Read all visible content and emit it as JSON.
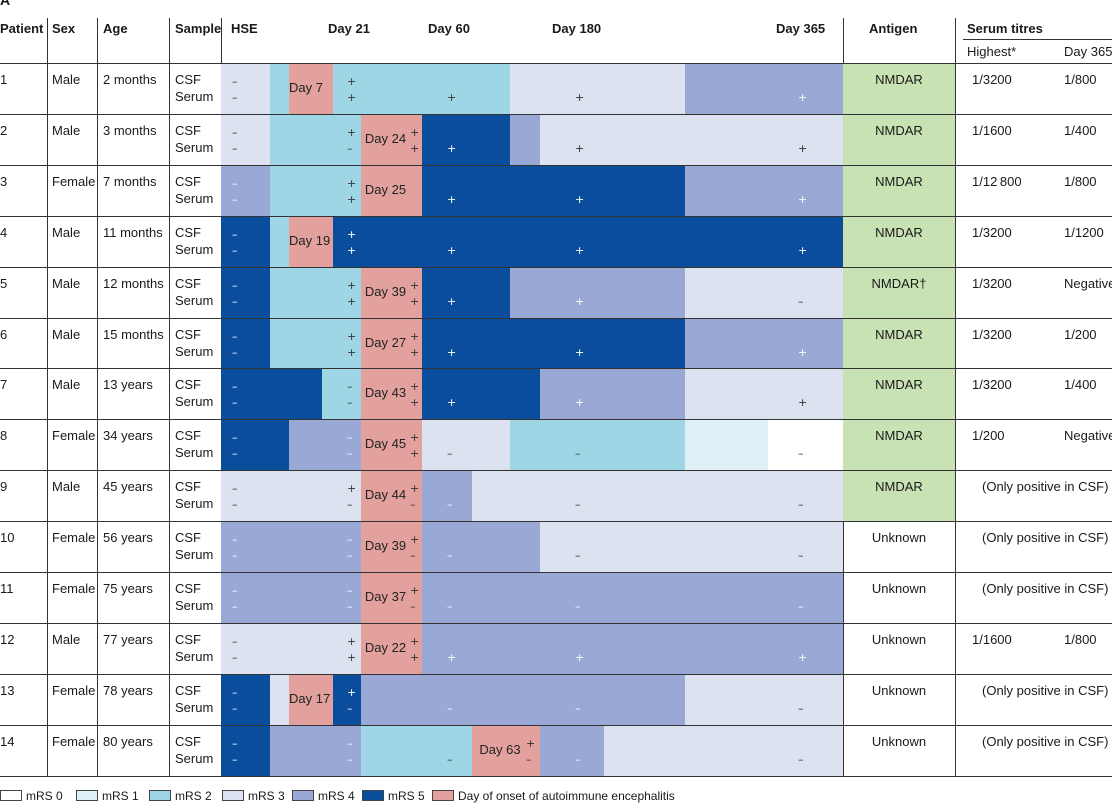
{
  "panel_label": "A",
  "headers": {
    "patient": "Patient",
    "sex": "Sex",
    "age": "Age",
    "sample": "Sample",
    "hse": "HSE",
    "day21": "Day 21",
    "day60": "Day 60",
    "day180": "Day 180",
    "day365": "Day 365",
    "antigen": "Antigen",
    "serum_titres": "Serum titres",
    "highest": "Highest*",
    "titre_day365": "Day 365"
  },
  "sample_labels": [
    "CSF",
    "Serum"
  ],
  "colors": {
    "mrs0": "#ffffff",
    "mrs1": "#dff1f7",
    "mrs2": "#9fd6e6",
    "mrs3": "#dde2f0",
    "mrs4": "#9aa8d6",
    "mrs5": "#0a4d9c",
    "onset": "#e3a19d",
    "antigen_nmdar": "#c9e2b4"
  },
  "rows": [
    {
      "patient": "1",
      "sex": "Male",
      "age": "2 months",
      "onset": "Day 7",
      "antigen": "NMDAR",
      "highest": "1/3200",
      "d365": "1/800",
      "segs": [
        [
          221,
          270,
          "mrs3"
        ],
        [
          270,
          289,
          "mrs2"
        ],
        [
          289,
          333,
          "onset"
        ],
        [
          333,
          510,
          "mrs2"
        ],
        [
          510,
          685,
          "mrs3"
        ],
        [
          685,
          843,
          "mrs4"
        ]
      ],
      "marks": [
        [
          232,
          "–",
          "–"
        ],
        [
          347,
          "+",
          "+"
        ],
        [
          447,
          "",
          "+"
        ],
        [
          575,
          "",
          "+"
        ],
        [
          798,
          "",
          "+"
        ]
      ]
    },
    {
      "patient": "2",
      "sex": "Male",
      "age": "3 months",
      "onset": "Day 24",
      "antigen": "NMDAR",
      "highest": "1/1600",
      "d365": "1/400",
      "segs": [
        [
          221,
          270,
          "mrs3"
        ],
        [
          270,
          361,
          "mrs2"
        ],
        [
          361,
          422,
          "onset"
        ],
        [
          422,
          510,
          "mrs5"
        ],
        [
          510,
          540,
          "mrs4"
        ],
        [
          540,
          843,
          "mrs3"
        ]
      ],
      "marks": [
        [
          232,
          "–",
          "–"
        ],
        [
          347,
          "+",
          "–"
        ],
        [
          410,
          "+",
          "+"
        ],
        [
          447,
          "",
          "+"
        ],
        [
          575,
          "",
          "+"
        ],
        [
          798,
          "",
          "+"
        ]
      ]
    },
    {
      "patient": "3",
      "sex": "Female",
      "age": "7 months",
      "onset": "Day 25",
      "antigen": "NMDAR",
      "highest": "1/12 800",
      "d365": "1/800",
      "segs": [
        [
          221,
          270,
          "mrs4"
        ],
        [
          270,
          361,
          "mrs2"
        ],
        [
          361,
          422,
          "onset"
        ],
        [
          422,
          685,
          "mrs5"
        ],
        [
          685,
          843,
          "mrs4"
        ]
      ],
      "marks": [
        [
          232,
          "–",
          "–"
        ],
        [
          347,
          "+",
          "+"
        ],
        [
          447,
          "",
          "+"
        ],
        [
          575,
          "",
          "+"
        ],
        [
          798,
          "",
          "+"
        ]
      ]
    },
    {
      "patient": "4",
      "sex": "Male",
      "age": "11 months",
      "onset": "Day 19",
      "antigen": "NMDAR",
      "highest": "1/3200",
      "d365": "1/1200",
      "segs": [
        [
          221,
          270,
          "mrs5"
        ],
        [
          270,
          289,
          "mrs2"
        ],
        [
          289,
          333,
          "onset"
        ],
        [
          333,
          843,
          "mrs5"
        ]
      ],
      "marks": [
        [
          232,
          "–",
          "–"
        ],
        [
          347,
          "+",
          "+"
        ],
        [
          447,
          "",
          "+"
        ],
        [
          575,
          "",
          "+"
        ],
        [
          798,
          "",
          "+"
        ]
      ]
    },
    {
      "patient": "5",
      "sex": "Male",
      "age": "12 months",
      "onset": "Day 39",
      "antigen": "NMDAR†",
      "highest": "1/3200",
      "d365": "Negative",
      "segs": [
        [
          221,
          270,
          "mrs5"
        ],
        [
          270,
          361,
          "mrs2"
        ],
        [
          361,
          422,
          "onset"
        ],
        [
          422,
          510,
          "mrs5"
        ],
        [
          510,
          685,
          "mrs4"
        ],
        [
          685,
          843,
          "mrs3"
        ]
      ],
      "marks": [
        [
          232,
          "–",
          "–"
        ],
        [
          347,
          "+",
          "+"
        ],
        [
          410,
          "+",
          "+"
        ],
        [
          447,
          "",
          "+"
        ],
        [
          575,
          "",
          "+"
        ],
        [
          798,
          "",
          "–"
        ]
      ]
    },
    {
      "patient": "6",
      "sex": "Male",
      "age": "15 months",
      "onset": "Day 27",
      "antigen": "NMDAR",
      "highest": "1/3200",
      "d365": "1/200",
      "segs": [
        [
          221,
          270,
          "mrs5"
        ],
        [
          270,
          361,
          "mrs2"
        ],
        [
          361,
          422,
          "onset"
        ],
        [
          422,
          685,
          "mrs5"
        ],
        [
          685,
          843,
          "mrs4"
        ]
      ],
      "marks": [
        [
          232,
          "–",
          "–"
        ],
        [
          347,
          "+",
          "+"
        ],
        [
          410,
          "+",
          "+"
        ],
        [
          447,
          "",
          "+"
        ],
        [
          575,
          "",
          "+"
        ],
        [
          798,
          "",
          "+"
        ]
      ]
    },
    {
      "patient": "7",
      "sex": "Male",
      "age": "13 years",
      "onset": "Day 43",
      "antigen": "NMDAR",
      "highest": "1/3200",
      "d365": "1/400",
      "segs": [
        [
          221,
          322,
          "mrs5"
        ],
        [
          322,
          361,
          "mrs2"
        ],
        [
          361,
          422,
          "onset"
        ],
        [
          422,
          540,
          "mrs5"
        ],
        [
          540,
          685,
          "mrs4"
        ],
        [
          685,
          843,
          "mrs3"
        ]
      ],
      "marks": [
        [
          232,
          "–",
          "–"
        ],
        [
          347,
          "–",
          "–"
        ],
        [
          410,
          "+",
          "+"
        ],
        [
          447,
          "",
          "+"
        ],
        [
          575,
          "",
          "+"
        ],
        [
          798,
          "",
          "+"
        ]
      ]
    },
    {
      "patient": "8",
      "sex": "Female",
      "age": "34 years",
      "onset": "Day 45",
      "antigen": "NMDAR",
      "highest": "1/200",
      "d365": "Negative",
      "segs": [
        [
          221,
          289,
          "mrs5"
        ],
        [
          289,
          361,
          "mrs4"
        ],
        [
          361,
          422,
          "onset"
        ],
        [
          422,
          510,
          "mrs3"
        ],
        [
          510,
          685,
          "mrs2"
        ],
        [
          685,
          768,
          "mrs1"
        ],
        [
          768,
          843,
          "mrs0"
        ]
      ],
      "marks": [
        [
          232,
          "–",
          "–"
        ],
        [
          347,
          "–",
          "–"
        ],
        [
          410,
          "+",
          "+"
        ],
        [
          447,
          "",
          "–"
        ],
        [
          575,
          "",
          "–"
        ],
        [
          798,
          "",
          "–"
        ]
      ]
    },
    {
      "patient": "9",
      "sex": "Male",
      "age": "45 years",
      "onset": "Day 44",
      "antigen": "NMDAR",
      "titres_note": "(Only positive in CSF)",
      "segs": [
        [
          221,
          361,
          "mrs3"
        ],
        [
          361,
          422,
          "onset"
        ],
        [
          422,
          472,
          "mrs4"
        ],
        [
          472,
          843,
          "mrs3"
        ]
      ],
      "marks": [
        [
          232,
          "–",
          "–"
        ],
        [
          347,
          "+",
          "–"
        ],
        [
          410,
          "+",
          "–"
        ],
        [
          447,
          "",
          "–"
        ],
        [
          575,
          "",
          "–"
        ],
        [
          798,
          "",
          "–"
        ]
      ]
    },
    {
      "patient": "10",
      "sex": "Female",
      "age": "56 years",
      "onset": "Day 39",
      "antigen": "Unknown",
      "titres_note": "(Only positive in CSF)",
      "segs": [
        [
          221,
          361,
          "mrs4"
        ],
        [
          361,
          422,
          "onset"
        ],
        [
          422,
          540,
          "mrs4"
        ],
        [
          540,
          843,
          "mrs3"
        ]
      ],
      "marks": [
        [
          232,
          "–",
          "–"
        ],
        [
          347,
          "–",
          "–"
        ],
        [
          410,
          "+",
          "–"
        ],
        [
          447,
          "",
          "–"
        ],
        [
          575,
          "",
          "–"
        ],
        [
          798,
          "",
          "–"
        ]
      ]
    },
    {
      "patient": "11",
      "sex": "Female",
      "age": "75 years",
      "onset": "Day 37",
      "antigen": "Unknown",
      "titres_note": "(Only positive in CSF)",
      "segs": [
        [
          221,
          361,
          "mrs4"
        ],
        [
          361,
          422,
          "onset"
        ],
        [
          422,
          843,
          "mrs4"
        ]
      ],
      "marks": [
        [
          232,
          "–",
          "–"
        ],
        [
          347,
          "–",
          "–"
        ],
        [
          410,
          "+",
          "–"
        ],
        [
          447,
          "",
          "–"
        ],
        [
          575,
          "",
          "–"
        ],
        [
          798,
          "",
          "–"
        ]
      ]
    },
    {
      "patient": "12",
      "sex": "Male",
      "age": "77 years",
      "onset": "Day 22",
      "antigen": "Unknown",
      "highest": "1/1600",
      "d365": "1/800",
      "segs": [
        [
          221,
          361,
          "mrs3"
        ],
        [
          361,
          422,
          "onset"
        ],
        [
          422,
          843,
          "mrs4"
        ]
      ],
      "marks": [
        [
          232,
          "–",
          "–"
        ],
        [
          347,
          "+",
          "+"
        ],
        [
          410,
          "+",
          "+"
        ],
        [
          447,
          "",
          "+"
        ],
        [
          575,
          "",
          "+"
        ],
        [
          798,
          "",
          "+"
        ]
      ]
    },
    {
      "patient": "13",
      "sex": "Female",
      "age": "78 years",
      "onset": "Day 17",
      "antigen": "Unknown",
      "titres_note": "(Only positive in CSF)",
      "segs": [
        [
          221,
          270,
          "mrs5"
        ],
        [
          270,
          289,
          "mrs3"
        ],
        [
          289,
          333,
          "onset"
        ],
        [
          333,
          361,
          "mrs5"
        ],
        [
          361,
          685,
          "mrs4"
        ],
        [
          685,
          843,
          "mrs3"
        ]
      ],
      "marks": [
        [
          232,
          "–",
          "–"
        ],
        [
          347,
          "+",
          "–"
        ],
        [
          447,
          "",
          "–"
        ],
        [
          575,
          "",
          "–"
        ],
        [
          798,
          "",
          "–"
        ]
      ]
    },
    {
      "patient": "14",
      "sex": "Female",
      "age": "80 years",
      "onset": "Day 63",
      "antigen": "Unknown",
      "titres_note": "(Only positive in CSF)",
      "segs": [
        [
          221,
          270,
          "mrs5"
        ],
        [
          270,
          361,
          "mrs4"
        ],
        [
          361,
          472,
          "mrs2"
        ],
        [
          472,
          540,
          "onset"
        ],
        [
          540,
          604,
          "mrs4"
        ],
        [
          604,
          843,
          "mrs3"
        ]
      ],
      "marks": [
        [
          232,
          "–",
          "–"
        ],
        [
          347,
          "–",
          "–"
        ],
        [
          447,
          "",
          "–"
        ],
        [
          526,
          "+",
          "–"
        ],
        [
          575,
          "",
          "–"
        ],
        [
          798,
          "",
          "–"
        ]
      ]
    }
  ],
  "legend": [
    {
      "label": "mRS 0",
      "color": "mrs0"
    },
    {
      "label": "mRS 1",
      "color": "mrs1"
    },
    {
      "label": "mRS 2",
      "color": "mrs2"
    },
    {
      "label": "mRS 3",
      "color": "mrs3"
    },
    {
      "label": "mRS 4",
      "color": "mrs4"
    },
    {
      "label": "mRS 5",
      "color": "mrs5"
    },
    {
      "label": "Day of onset of autoimmune encephalitis",
      "color": "onset"
    }
  ]
}
